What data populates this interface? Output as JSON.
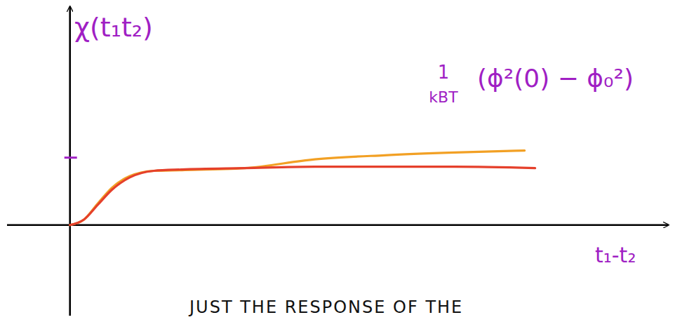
{
  "chart_data": {
    "type": "line",
    "y_label": "χ(t₁t₂)",
    "x_label": "t₁-t₂",
    "annotation": {
      "numerator": "1",
      "denominator": "kBT",
      "expression": "(ϕ²(0) − ϕ₀²)"
    },
    "caption": "JUST THE RESPONSE OF THE",
    "xlim": [
      -0.9,
      8.55
    ],
    "ylim": [
      -1.34,
      3.22
    ],
    "xticks": [],
    "yticks": [
      1
    ],
    "tick_labels": false,
    "series": [
      {
        "color": "#f2a024",
        "x": [
          0,
          0.2,
          0.4,
          0.6,
          0.85,
          1.2,
          1.6,
          2.5,
          3.5,
          4.5,
          5.5,
          6.5
        ],
        "values": [
          0,
          0.08,
          0.32,
          0.55,
          0.72,
          0.8,
          0.81,
          0.84,
          0.97,
          1.03,
          1.07,
          1.1
        ]
      },
      {
        "color": "#e5402b",
        "x": [
          0,
          0.2,
          0.4,
          0.6,
          0.85,
          1.2,
          1.6,
          2.5,
          3.5,
          4.5,
          5.5,
          6.65
        ],
        "values": [
          0,
          0.08,
          0.3,
          0.52,
          0.7,
          0.8,
          0.82,
          0.84,
          0.86,
          0.86,
          0.86,
          0.84
        ]
      }
    ]
  }
}
